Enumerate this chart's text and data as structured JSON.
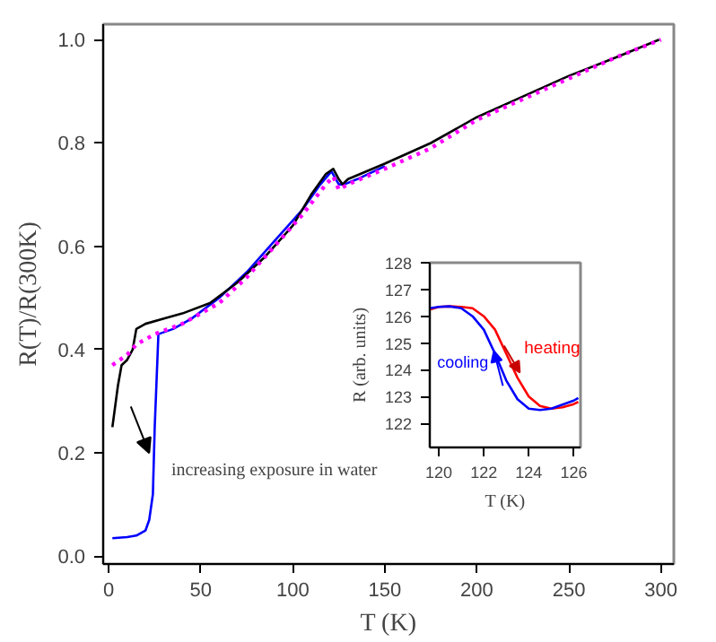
{
  "chart_data": [
    {
      "type": "line",
      "xlabel": "T (K)",
      "ylabel": "R(T)/R(300K)",
      "xlim": [
        -3,
        307
      ],
      "ylim": [
        -0.015,
        1.03
      ],
      "xticks": [
        0,
        50,
        100,
        150,
        200,
        250,
        300
      ],
      "yticks": [
        {
          "value": 0,
          "label": "0.0"
        },
        {
          "value": 0.2,
          "label": "0.2"
        },
        {
          "value": 0.4,
          "label": "0.4"
        },
        {
          "value": 0.6,
          "label": "0.6"
        },
        {
          "value": 0.8,
          "label": "0.8"
        },
        {
          "value": 1,
          "label": "1.0"
        }
      ],
      "grid": false,
      "series": [
        {
          "color": "#000000",
          "line_style": "solid",
          "x": [
            2,
            5,
            7,
            10,
            13,
            15,
            20,
            30,
            40,
            55,
            70,
            85,
            100,
            110,
            118,
            122,
            125,
            127,
            130,
            150,
            175,
            200,
            225,
            250,
            275,
            299
          ],
          "values": [
            0.25,
            0.33,
            0.37,
            0.38,
            0.4,
            0.44,
            0.45,
            0.46,
            0.47,
            0.49,
            0.53,
            0.58,
            0.64,
            0.7,
            0.74,
            0.75,
            0.73,
            0.72,
            0.73,
            0.76,
            0.8,
            0.85,
            0.89,
            0.93,
            0.965,
            1.0
          ]
        },
        {
          "color": "#0000ff",
          "line_style": "solid",
          "x": [
            2,
            10,
            15,
            20,
            22,
            24,
            25,
            27,
            35,
            45,
            60,
            75,
            90,
            105,
            115,
            121,
            125,
            128,
            135,
            150
          ],
          "values": [
            0.035,
            0.037,
            0.04,
            0.05,
            0.07,
            0.12,
            0.25,
            0.43,
            0.44,
            0.46,
            0.5,
            0.55,
            0.61,
            0.67,
            0.72,
            0.745,
            0.72,
            0.72,
            0.73,
            0.755
          ]
        },
        {
          "color": "#ff00ff",
          "line_style": "dotted",
          "x": [
            2,
            10,
            15,
            25,
            40,
            60,
            75,
            90,
            105,
            118,
            122,
            125,
            130,
            150,
            175,
            200,
            225,
            250,
            275,
            300
          ],
          "values": [
            0.37,
            0.39,
            0.41,
            0.43,
            0.45,
            0.49,
            0.54,
            0.6,
            0.66,
            0.72,
            0.735,
            0.71,
            0.72,
            0.75,
            0.79,
            0.845,
            0.885,
            0.925,
            0.965,
            1.0
          ]
        }
      ],
      "annotations": [
        "increasing exposure in water"
      ]
    },
    {
      "type": "line",
      "xlabel": "T (K)",
      "ylabel": "R (arb. units)",
      "xlim": [
        119.6,
        126.3
      ],
      "ylim": [
        121.1,
        128
      ],
      "xticks": [
        120,
        122,
        124,
        126
      ],
      "yticks": [
        122,
        123,
        124,
        125,
        126,
        127,
        128
      ],
      "grid": false,
      "x": [
        119.6,
        120,
        120.5,
        121,
        121.5,
        122,
        122.5,
        123,
        123.5,
        124,
        124.5,
        125,
        125.5,
        126,
        126.2
      ],
      "series": [
        {
          "name": "heating",
          "color": "#ff0000",
          "values": [
            126.25,
            126.35,
            126.37,
            126.35,
            126.3,
            126.0,
            125.5,
            124.6,
            123.7,
            123.0,
            122.65,
            122.55,
            122.6,
            122.72,
            122.8
          ]
        },
        {
          "name": "cooling",
          "color": "#0000ff",
          "values": [
            126.3,
            126.35,
            126.37,
            126.3,
            126.0,
            125.5,
            124.6,
            123.6,
            122.9,
            122.55,
            122.5,
            122.55,
            122.7,
            122.85,
            122.95
          ]
        }
      ]
    }
  ]
}
